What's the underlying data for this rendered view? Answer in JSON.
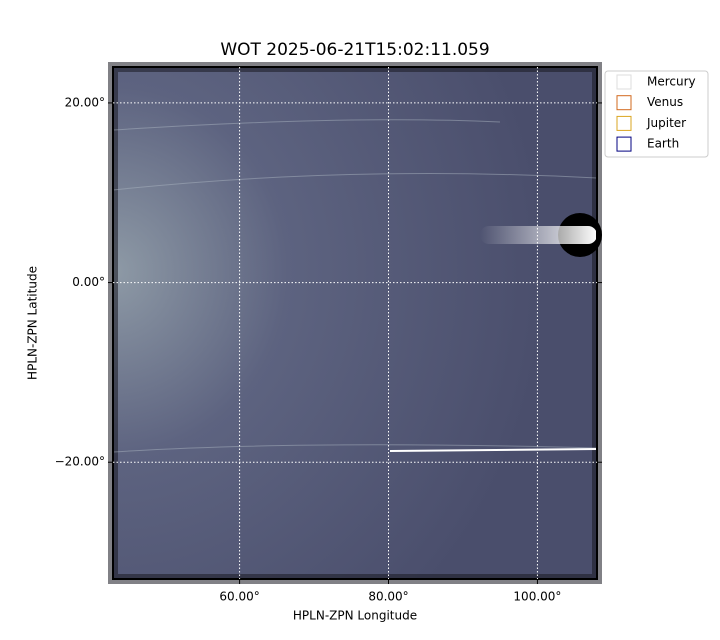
{
  "chart_data": {
    "type": "image",
    "title": "WOT 2025-06-21T15:02:11.059",
    "x_label": "HPLN-ZPN Longitude",
    "y_label": "HPLN-ZPN Latitude",
    "xlim": [
      43,
      108
    ],
    "ylim": [
      -33,
      24
    ],
    "xticks": [
      {
        "value": 60,
        "label": "60.00°"
      },
      {
        "value": 80,
        "label": "80.00°"
      },
      {
        "value": 100,
        "label": "100.00°"
      }
    ],
    "yticks": [
      {
        "value": -20,
        "label": "−20.00°"
      },
      {
        "value": 0,
        "label": "0.00°"
      },
      {
        "value": 20,
        "label": "20.00°"
      }
    ],
    "grid": true,
    "legend_position": "outside upper right",
    "series": [
      {
        "name": "Mercury",
        "color": "#dddddd"
      },
      {
        "name": "Venus",
        "color": "#d2691e"
      },
      {
        "name": "Jupiter",
        "color": "#daa520"
      },
      {
        "name": "Earth",
        "color": "#000080"
      }
    ]
  }
}
